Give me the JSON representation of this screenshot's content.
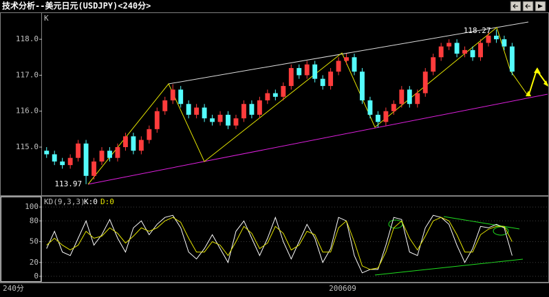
{
  "window_title": "技术分析--美元日元(USDJPY)<240分>",
  "footer": {
    "period": "240分",
    "date": "200609"
  },
  "chart_data": [
    {
      "type": "candlestick",
      "axis_label": "K",
      "ylim": [
        113.68,
        118.71
      ],
      "yticks": [
        {
          "value": 115,
          "label": "115.0"
        },
        {
          "value": 116,
          "label": "116.0"
        },
        {
          "value": 117,
          "label": "117.0"
        },
        {
          "value": 118,
          "label": "118.0"
        }
      ],
      "up_color": "#ff3c3c",
      "down_color": "#54fcfc",
      "open": [
        114.9,
        114.8,
        114.6,
        114.5,
        114.7,
        115.1,
        114.2,
        114.6,
        114.9,
        114.7,
        115.0,
        115.3,
        114.9,
        115.2,
        115.5,
        116.0,
        116.3,
        116.6,
        116.2,
        115.9,
        116.1,
        115.8,
        115.7,
        115.9,
        115.6,
        115.8,
        116.2,
        115.9,
        116.3,
        116.5,
        116.4,
        116.7,
        117.2,
        117.0,
        117.3,
        116.9,
        116.7,
        117.1,
        117.4,
        117.5,
        117.1,
        116.3,
        115.9,
        115.7,
        116.0,
        116.2,
        116.6,
        116.2,
        116.5,
        117.1,
        117.5,
        117.8,
        117.9,
        117.6,
        117.7,
        117.5,
        117.9,
        118.1,
        118.0,
        117.8
      ],
      "high": [
        115.0,
        114.9,
        114.7,
        114.8,
        115.2,
        115.2,
        114.7,
        115.0,
        115.0,
        115.1,
        115.4,
        115.4,
        115.3,
        115.6,
        116.1,
        116.4,
        116.75,
        116.7,
        116.3,
        116.2,
        116.2,
        115.9,
        116.0,
        116.0,
        115.9,
        116.3,
        116.3,
        116.4,
        116.6,
        116.6,
        116.8,
        117.3,
        117.3,
        117.4,
        117.4,
        117.0,
        117.2,
        117.5,
        117.6,
        117.6,
        117.2,
        116.4,
        116.0,
        116.1,
        116.3,
        116.7,
        116.7,
        116.6,
        117.2,
        117.6,
        117.9,
        118.0,
        118.0,
        117.8,
        117.8,
        118.0,
        118.2,
        118.27,
        118.1,
        117.9
      ],
      "low": [
        114.7,
        114.5,
        114.4,
        114.4,
        114.6,
        113.97,
        114.1,
        114.5,
        114.6,
        114.6,
        114.9,
        114.8,
        114.8,
        115.1,
        115.4,
        115.9,
        116.2,
        116.1,
        115.8,
        115.8,
        115.7,
        115.6,
        115.6,
        115.5,
        115.5,
        115.7,
        115.8,
        115.8,
        116.2,
        116.3,
        116.3,
        116.6,
        116.9,
        116.9,
        116.8,
        116.6,
        116.6,
        117.0,
        117.3,
        117.0,
        116.2,
        115.8,
        115.55,
        115.6,
        115.9,
        116.1,
        116.1,
        116.1,
        116.4,
        117.0,
        117.4,
        117.7,
        117.5,
        117.5,
        117.4,
        117.4,
        117.8,
        117.9,
        117.7,
        117.0
      ],
      "close": [
        114.8,
        114.6,
        114.5,
        114.7,
        115.1,
        114.2,
        114.6,
        114.9,
        114.7,
        115.0,
        115.3,
        114.9,
        115.2,
        115.5,
        116.0,
        116.3,
        116.6,
        116.2,
        115.9,
        116.1,
        115.8,
        115.7,
        115.9,
        115.6,
        115.8,
        116.2,
        115.9,
        116.3,
        116.5,
        116.4,
        116.7,
        117.2,
        117.0,
        117.3,
        116.9,
        116.7,
        117.1,
        117.4,
        117.5,
        117.1,
        116.3,
        115.9,
        115.7,
        116.0,
        116.2,
        116.6,
        116.2,
        116.5,
        117.1,
        117.5,
        117.8,
        117.9,
        117.6,
        117.7,
        117.5,
        117.9,
        118.1,
        118.0,
        117.8,
        117.1
      ]
    },
    {
      "type": "line",
      "title": "KD(9,3,3)",
      "ylim": [
        -8,
        113
      ],
      "yticks": [
        0,
        20,
        50,
        80,
        100
      ],
      "grid": true,
      "series": [
        {
          "name": "K:0",
          "color": "#ffffff",
          "values": [
            40,
            65,
            35,
            30,
            55,
            80,
            45,
            60,
            82,
            55,
            35,
            70,
            80,
            60,
            75,
            85,
            88,
            70,
            35,
            25,
            40,
            60,
            40,
            20,
            65,
            80,
            55,
            30,
            55,
            85,
            50,
            25,
            50,
            75,
            55,
            20,
            40,
            85,
            80,
            30,
            5,
            10,
            10,
            45,
            85,
            82,
            35,
            30,
            70,
            88,
            85,
            75,
            45,
            20,
            40,
            72,
            70,
            75,
            70,
            30
          ]
        },
        {
          "name": "D:0",
          "color": "#e6e600",
          "values": [
            45,
            55,
            45,
            38,
            45,
            65,
            55,
            58,
            70,
            62,
            48,
            58,
            70,
            65,
            70,
            80,
            85,
            78,
            55,
            35,
            35,
            50,
            45,
            30,
            50,
            72,
            62,
            40,
            48,
            72,
            62,
            38,
            45,
            65,
            60,
            35,
            35,
            70,
            80,
            50,
            15,
            10,
            12,
            35,
            70,
            80,
            55,
            38,
            58,
            80,
            85,
            80,
            60,
            35,
            35,
            60,
            68,
            72,
            72,
            50
          ]
        }
      ]
    }
  ]
}
